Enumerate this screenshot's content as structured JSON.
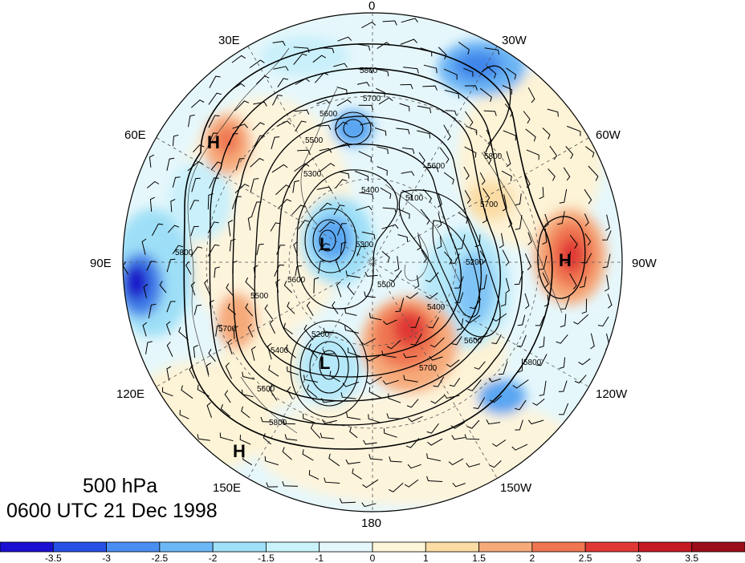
{
  "title": {
    "level": "500 hPa",
    "time": "0600 UTC 21 Dec 1998"
  },
  "longitude_labels": {
    "lon_0": "0",
    "lon_30w": "30W",
    "lon_60w": "60W",
    "lon_90w": "90W",
    "lon_120w": "120W",
    "lon_150w": "150W",
    "lon_180": "180",
    "lon_150e": "150E",
    "lon_120e": "120E",
    "lon_90e": "90E",
    "lon_60e": "60E",
    "lon_30e": "30E"
  },
  "pressure_centers": {
    "h_siberia": "H",
    "h_atlantic": "H",
    "h_pacific": "H",
    "l_arctic": "L",
    "l_pacific": "L"
  },
  "contour_labels": {
    "c5800_n": "5800",
    "c5700_n": "5700",
    "c5600_n": "5600",
    "c5500_n": "5500",
    "c5300_n": "5300",
    "c5400_n": "5400",
    "c5600_e": "5600",
    "c5100_c": "5100",
    "c5700_e": "5700",
    "c5800_ne": "5800",
    "c5200_e": "5200",
    "c5400_e": "5400",
    "c5600_se": "5600",
    "c5800_se": "5800",
    "c5700_s": "5700",
    "c5500_s": "5500",
    "c5300_s": "5300",
    "c5600_w": "5600",
    "c5500_w": "5500",
    "c5700_w": "5700",
    "c5800_w": "5800",
    "c5600_sw": "5600",
    "c5800_sw": "5800",
    "c5400_sw": "5400",
    "c5200_sw": "5200"
  },
  "colorbar": {
    "ticks": [
      "-3.5",
      "-3",
      "-2.5",
      "-2",
      "-1.5",
      "-1",
      "0",
      "1",
      "1.5",
      "2",
      "2.5",
      "3",
      "3.5"
    ],
    "colors": [
      "#1b0fd2",
      "#2750e6",
      "#4a8ef2",
      "#6cb8f6",
      "#9ee0f8",
      "#c9f2fb",
      "#e4f8fc",
      "#fdf5d8",
      "#fbdca4",
      "#f6aa7a",
      "#ef7651",
      "#e03834",
      "#c41a24",
      "#9b0d18"
    ]
  }
}
